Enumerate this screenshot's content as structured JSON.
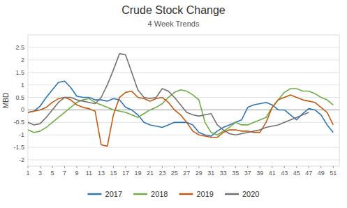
{
  "chart_data": {
    "type": "line",
    "title": "Crude Stock Change",
    "subtitle": "4 Week Trends",
    "y_label": "MBD",
    "x": [
      1,
      2,
      3,
      4,
      5,
      6,
      7,
      8,
      9,
      10,
      11,
      12,
      13,
      14,
      15,
      16,
      17,
      18,
      19,
      20,
      21,
      22,
      23,
      24,
      25,
      26,
      27,
      28,
      29,
      30,
      31,
      32,
      33,
      34,
      35,
      36,
      37,
      38,
      39,
      40,
      41,
      42,
      43,
      44,
      45,
      46,
      47,
      48,
      49,
      50,
      51
    ],
    "xlim": [
      1,
      52
    ],
    "xticks": [
      1,
      3,
      5,
      7,
      9,
      11,
      13,
      15,
      17,
      19,
      21,
      23,
      25,
      27,
      29,
      31,
      33,
      35,
      37,
      39,
      41,
      43,
      45,
      47,
      49,
      51
    ],
    "ylim": [
      -2.25,
      3.0
    ],
    "yticks": [
      -2,
      -1.5,
      -1,
      -0.5,
      0,
      0.5,
      1,
      1.5,
      2,
      2.5
    ],
    "grid": true,
    "legend": "bottom",
    "series": [
      {
        "name": "2017",
        "color": "#2e75b6",
        "values": [
          -0.1,
          -0.05,
          0.15,
          0.5,
          0.8,
          1.1,
          1.15,
          0.9,
          0.55,
          0.5,
          0.5,
          0.4,
          0.4,
          0.35,
          0.45,
          0.4,
          0.1,
          0.0,
          -0.2,
          -0.5,
          -0.6,
          -0.65,
          -0.7,
          -0.6,
          -0.5,
          -0.5,
          -0.5,
          -0.6,
          -0.9,
          -1.0,
          -1.05,
          -0.85,
          -0.7,
          -0.6,
          -0.5,
          -0.4,
          0.1,
          0.2,
          0.25,
          0.3,
          0.2,
          0.0,
          0.0,
          -0.2,
          -0.4,
          -0.15,
          0.05,
          0.0,
          -0.2,
          -0.6,
          -0.9
        ]
      },
      {
        "name": "2018",
        "color": "#70ad47",
        "values": [
          -0.8,
          -0.9,
          -0.85,
          -0.7,
          -0.5,
          -0.3,
          -0.1,
          0.1,
          0.3,
          0.4,
          0.45,
          0.3,
          0.2,
          0.1,
          0.0,
          -0.05,
          -0.1,
          -0.2,
          -0.3,
          -0.15,
          0.0,
          0.1,
          0.25,
          0.5,
          0.7,
          0.8,
          0.75,
          0.6,
          0.4,
          -0.5,
          -0.9,
          -1.0,
          -0.85,
          -0.7,
          -0.5,
          -0.6,
          -0.6,
          -0.5,
          -0.4,
          -0.3,
          0.1,
          0.4,
          0.7,
          0.85,
          0.85,
          0.75,
          0.75,
          0.65,
          0.5,
          0.4,
          0.2
        ]
      },
      {
        "name": "2019",
        "color": "#c55a11",
        "values": [
          -0.1,
          -0.05,
          0.0,
          0.1,
          0.3,
          0.45,
          0.5,
          0.4,
          0.2,
          0.1,
          0.05,
          -0.05,
          -1.4,
          -1.45,
          -0.2,
          0.5,
          0.7,
          0.75,
          0.5,
          0.45,
          0.35,
          0.45,
          0.5,
          0.3,
          0.0,
          -0.2,
          -0.5,
          -0.85,
          -1.0,
          -1.05,
          -1.1,
          -1.1,
          -0.9,
          -0.8,
          -0.8,
          -0.85,
          -0.85,
          -0.9,
          -0.9,
          -0.5,
          0.1,
          0.4,
          0.5,
          0.6,
          0.5,
          0.4,
          0.35,
          0.3,
          0.1,
          -0.1,
          -0.6
        ]
      },
      {
        "name": "2020",
        "color": "#767171",
        "values": [
          -0.5,
          -0.6,
          -0.55,
          -0.3,
          0.0,
          0.3,
          0.5,
          0.5,
          0.4,
          0.35,
          0.3,
          0.25,
          0.5,
          1.0,
          1.6,
          2.25,
          2.2,
          1.5,
          0.8,
          0.5,
          0.45,
          0.5,
          0.85,
          0.75,
          0.5,
          0.2,
          -0.1,
          -0.2,
          -0.25,
          -0.2,
          -0.15,
          -0.6,
          -0.8,
          -0.95,
          -1.0,
          -0.95,
          -0.9,
          -0.85,
          -0.8,
          -0.7,
          -0.65,
          -0.6,
          -0.5,
          -0.4,
          -0.3,
          -0.2,
          -0.1,
          null,
          null,
          null,
          null
        ]
      }
    ]
  }
}
